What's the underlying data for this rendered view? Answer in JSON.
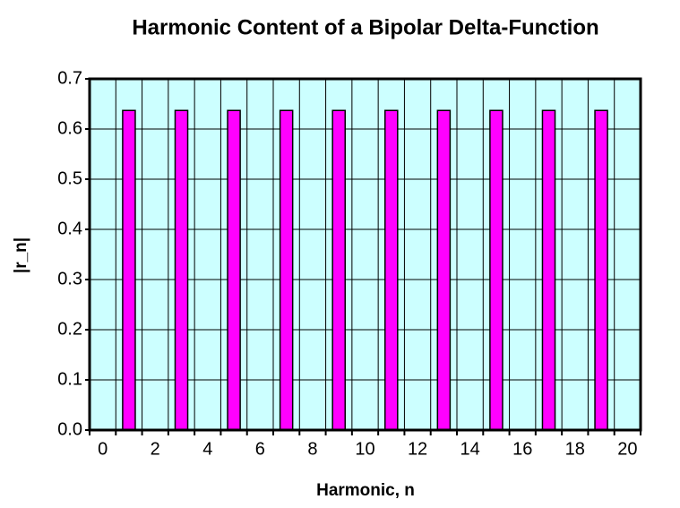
{
  "chart_data": {
    "type": "bar",
    "title": "Harmonic Content of  a Bipolar Delta-Function",
    "x_label": "Harmonic, n",
    "y_label": "|r_n|",
    "categories": [
      "0",
      null,
      "2",
      null,
      "4",
      null,
      "6",
      null,
      "8",
      null,
      "10",
      null,
      "12",
      null,
      "14",
      null,
      "16",
      null,
      "18",
      null,
      "20"
    ],
    "values": [
      0,
      0.637,
      0,
      0.637,
      0,
      0.637,
      0,
      0.637,
      0,
      0.637,
      0,
      0.637,
      0,
      0.637,
      0,
      0.637,
      0,
      0.637,
      0,
      0.637,
      0
    ],
    "color": "#ff00ff",
    "background": "#ccffff",
    "ylim": [
      0,
      0.7
    ],
    "yticks": [
      {
        "value": 0,
        "label": "0.0"
      },
      0.1,
      0.2,
      0.3,
      0.4,
      0.5,
      0.6,
      0.7
    ],
    "grid": true
  }
}
